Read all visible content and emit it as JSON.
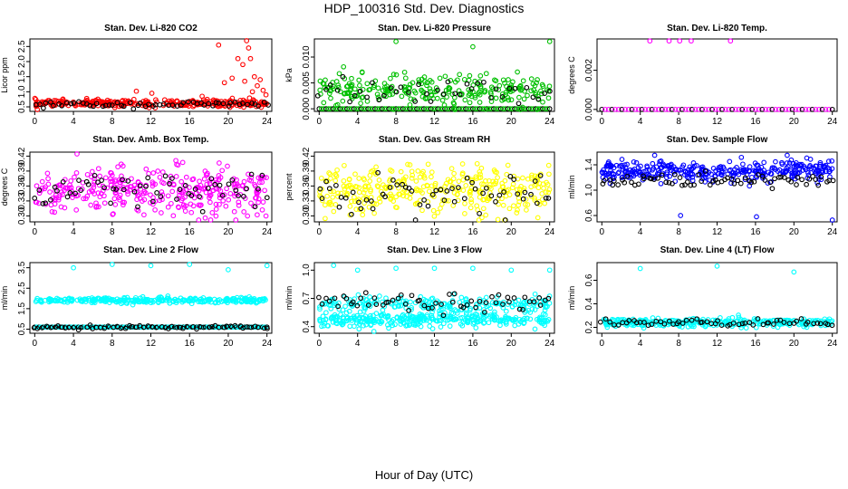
{
  "title": "HDP_100316  Std. Dev. Diagnostics",
  "xlabel": "Hour of Day (UTC)",
  "chart_data": [
    {
      "type": "scatter",
      "title": "Stan. Dev. Li-820 CO2",
      "ylabel": "Licor ppm",
      "xticks": [
        "0",
        "4",
        "8",
        "12",
        "16",
        "20",
        "24"
      ],
      "yticks": [
        "0.5",
        "1.0",
        "1.5",
        "2.0",
        "2.5"
      ],
      "ytick_values": [
        0.5,
        1.0,
        1.5,
        2.0,
        2.5
      ],
      "ylim": [
        0.35,
        2.75
      ],
      "xlim": [
        -0.5,
        24.5
      ],
      "color": "#ff0000",
      "main": {
        "count": 300,
        "mean": 0.62,
        "sd": 0.06
      },
      "black": {
        "count": 60,
        "mean": 0.58,
        "sd": 0.05
      },
      "outliers": [
        [
          10.5,
          1.02
        ],
        [
          12.1,
          0.95
        ],
        [
          17.3,
          0.85
        ],
        [
          19.0,
          2.55
        ],
        [
          19.6,
          1.3
        ],
        [
          20.4,
          1.45
        ],
        [
          21.0,
          2.1
        ],
        [
          21.5,
          1.9
        ],
        [
          21.9,
          2.7
        ],
        [
          22.1,
          2.45
        ],
        [
          22.3,
          2.1
        ],
        [
          22.7,
          1.5
        ],
        [
          23.0,
          1.2
        ],
        [
          23.3,
          1.4
        ],
        [
          23.6,
          1.05
        ],
        [
          22.5,
          1.0
        ],
        [
          21.7,
          1.35
        ],
        [
          23.9,
          0.9
        ]
      ]
    },
    {
      "type": "scatter",
      "title": "Stan. Dev. Li-820 Pressure",
      "ylabel": "kPa",
      "xticks": [
        "0",
        "4",
        "8",
        "12",
        "16",
        "20",
        "24"
      ],
      "yticks": [
        "0.000",
        "0.005",
        "0.010"
      ],
      "ytick_values": [
        0.0,
        0.005,
        0.01
      ],
      "ylim": [
        -0.0005,
        0.0135
      ],
      "xlim": [
        -0.5,
        24.5
      ],
      "color": "#00c000",
      "main": {
        "count": 260,
        "mean": 0.0035,
        "sd": 0.0015
      },
      "black": {
        "count": 40,
        "mean": 0.0032,
        "sd": 0.0012
      },
      "outliers": [
        [
          8.0,
          0.013
        ],
        [
          16.0,
          0.012
        ],
        [
          24.0,
          0.013
        ]
      ],
      "baseline": {
        "value": 0.0,
        "count": 100
      }
    },
    {
      "type": "scatter",
      "title": "Stan. Dev. Li-820 Temp.",
      "ylabel": "degrees C",
      "xticks": [
        "0",
        "4",
        "8",
        "12",
        "16",
        "20",
        "24"
      ],
      "yticks": [
        "0.000",
        "0.002"
      ],
      "ytick_values": [
        0.0,
        0.002
      ],
      "ylim": [
        -0.0001,
        0.0036
      ],
      "xlim": [
        -0.5,
        24.5
      ],
      "color": "#ff00ff",
      "main": {
        "count": 0,
        "mean": 0,
        "sd": 0
      },
      "black": {
        "count": 0,
        "mean": 0,
        "sd": 0
      },
      "outliers": [
        [
          5.0,
          0.0035
        ],
        [
          7.0,
          0.0035
        ],
        [
          8.1,
          0.0035
        ],
        [
          9.3,
          0.0035
        ],
        [
          13.4,
          0.0035
        ]
      ],
      "baseline": {
        "value": 0.0,
        "count": 70
      }
    },
    {
      "type": "scatter",
      "title": "Stan. Dev. Amb. Box Temp.",
      "ylabel": "degrees C",
      "xticks": [
        "0",
        "4",
        "8",
        "12",
        "16",
        "20",
        "24"
      ],
      "yticks": [
        "0.30",
        "0.33",
        "0.36",
        "0.39",
        "0.42"
      ],
      "ytick_values": [
        0.3,
        0.33,
        0.36,
        0.39,
        0.42
      ],
      "ylim": [
        0.288,
        0.428
      ],
      "xlim": [
        -0.5,
        24.5
      ],
      "color": "#ff00ff",
      "main": {
        "count": 340,
        "mean": 0.35,
        "sd": 0.024
      },
      "black": {
        "count": 60,
        "mean": 0.345,
        "sd": 0.02
      },
      "outliers": []
    },
    {
      "type": "scatter",
      "title": "Stan. Dev. Gas Stream RH",
      "ylabel": "percent",
      "xticks": [
        "0",
        "4",
        "8",
        "12",
        "16",
        "20",
        "24"
      ],
      "yticks": [
        "0.30",
        "0.33",
        "0.36",
        "0.39",
        "0.42"
      ],
      "ytick_values": [
        0.3,
        0.33,
        0.36,
        0.39,
        0.42
      ],
      "ylim": [
        0.288,
        0.428
      ],
      "xlim": [
        -0.5,
        24.5
      ],
      "color": "#ffff00",
      "main": {
        "count": 340,
        "mean": 0.35,
        "sd": 0.024
      },
      "black": {
        "count": 60,
        "mean": 0.345,
        "sd": 0.02
      },
      "outliers": []
    },
    {
      "type": "scatter",
      "title": "Stan. Dev. Sample Flow",
      "ylabel": "ml/min",
      "xticks": [
        "0",
        "4",
        "8",
        "12",
        "16",
        "20",
        "24"
      ],
      "yticks": [
        "0.6",
        "1.0",
        "1.4"
      ],
      "ytick_values": [
        0.6,
        1.0,
        1.4
      ],
      "ylim": [
        0.5,
        1.6
      ],
      "xlim": [
        -0.5,
        24.5
      ],
      "color": "#0000ff",
      "main": {
        "count": 340,
        "mean": 1.3,
        "sd": 0.08
      },
      "black": {
        "count": 70,
        "mean": 1.15,
        "sd": 0.06
      },
      "outliers": [
        [
          8.2,
          0.6
        ],
        [
          16.1,
          0.58
        ],
        [
          24.0,
          0.52
        ],
        [
          5.5,
          1.55
        ],
        [
          19.3,
          1.55
        ]
      ]
    },
    {
      "type": "scatter",
      "title": "Stan. Dev. Line 2 Flow",
      "ylabel": "ml/min",
      "xticks": [
        "0",
        "4",
        "8",
        "12",
        "16",
        "20",
        "24"
      ],
      "yticks": [
        "0.5",
        "1.5",
        "2.5",
        "3.5"
      ],
      "ytick_values": [
        0.5,
        1.5,
        2.5,
        3.5
      ],
      "ylim": [
        0.3,
        3.75
      ],
      "xlim": [
        -0.5,
        24.5
      ],
      "color": "#00ffff",
      "main": {
        "count": 300,
        "mean": 1.9,
        "sd": 0.07
      },
      "black": {
        "count": 60,
        "mean": 0.6,
        "sd": 0.04
      },
      "outliers": [
        [
          4.0,
          3.5
        ],
        [
          8.0,
          3.7
        ],
        [
          12.0,
          3.6
        ],
        [
          16.0,
          3.7
        ],
        [
          20.0,
          3.4
        ],
        [
          24.0,
          3.6
        ]
      ],
      "baseline": {
        "value": 0.6,
        "count": 160
      }
    },
    {
      "type": "scatter",
      "title": "Stan. Dev. Line 3 Flow",
      "ylabel": "ml/min",
      "xticks": [
        "0",
        "4",
        "8",
        "12",
        "16",
        "20",
        "24"
      ],
      "yticks": [
        "0.4",
        "0.7",
        "1.0"
      ],
      "ytick_values": [
        0.4,
        0.7,
        1.0
      ],
      "ylim": [
        0.33,
        1.08
      ],
      "xlim": [
        -0.5,
        24.5
      ],
      "color": "#00ffff",
      "main": {
        "count": 320,
        "mean": 0.48,
        "sd": 0.04
      },
      "black": {
        "count": 60,
        "mean": 0.66,
        "sd": 0.05
      },
      "outliers": [
        [
          1.5,
          1.05
        ],
        [
          4.0,
          1.0
        ],
        [
          8.0,
          1.02
        ],
        [
          12.0,
          1.02
        ],
        [
          16.0,
          1.02
        ],
        [
          20.0,
          1.0
        ],
        [
          24.0,
          1.0
        ]
      ],
      "band": {
        "count": 200,
        "mean": 0.64,
        "sd": 0.04
      }
    },
    {
      "type": "scatter",
      "title": "Stan. Dev. Line 4 (LT) Flow",
      "ylabel": "ml/min",
      "xticks": [
        "0",
        "4",
        "8",
        "12",
        "16",
        "20",
        "24"
      ],
      "yticks": [
        "0.2",
        "0.4",
        "0.6"
      ],
      "ytick_values": [
        0.2,
        0.4,
        0.6
      ],
      "ylim": [
        0.15,
        0.75
      ],
      "xlim": [
        -0.5,
        24.5
      ],
      "color": "#00ffff",
      "main": {
        "count": 300,
        "mean": 0.24,
        "sd": 0.018
      },
      "black": {
        "count": 60,
        "mean": 0.24,
        "sd": 0.015
      },
      "outliers": [
        [
          4.0,
          0.7
        ],
        [
          12.0,
          0.72
        ],
        [
          20.0,
          0.67
        ]
      ]
    }
  ]
}
